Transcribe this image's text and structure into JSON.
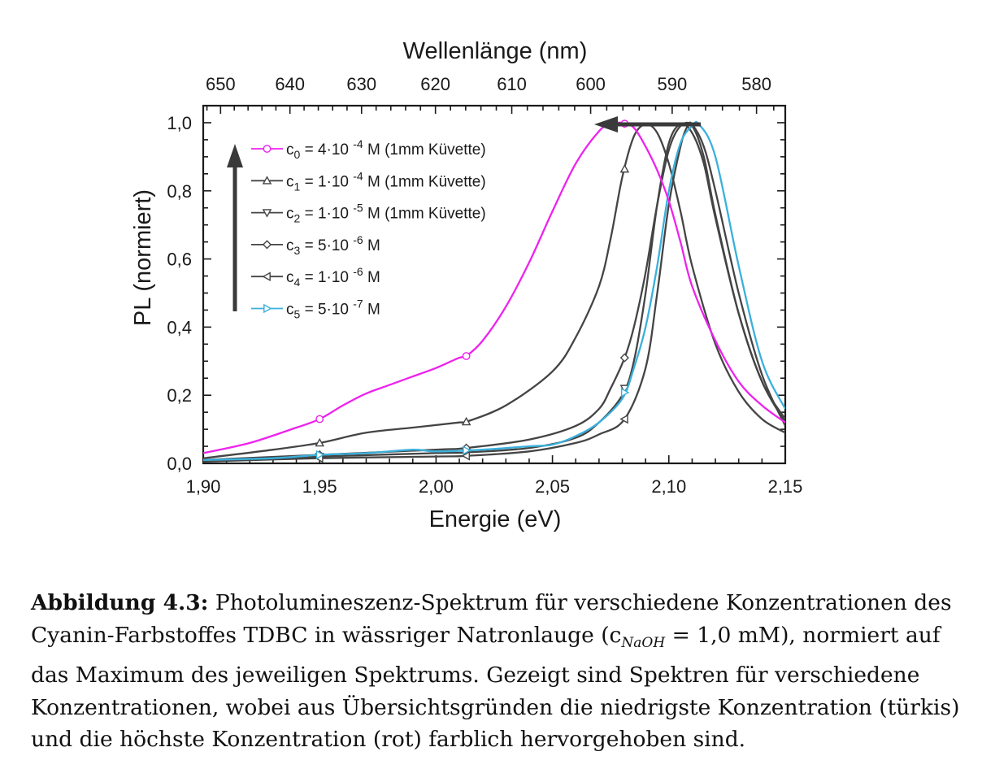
{
  "chart_data": {
    "type": "line",
    "title": "",
    "xlabel": "Energie (eV)",
    "ylabel": "PL (normiert)",
    "top_axis_label": "Wellenlänge (nm)",
    "xlim": [
      1.9,
      2.15
    ],
    "ylim": [
      0.0,
      1.05
    ],
    "xticks": [
      1.9,
      1.95,
      2.0,
      2.05,
      2.1,
      2.15
    ],
    "xtick_labels": [
      "1,90",
      "1,95",
      "2,00",
      "2,05",
      "2,10",
      "2,15"
    ],
    "yticks": [
      0.0,
      0.2,
      0.4,
      0.6,
      0.8,
      1.0
    ],
    "ytick_labels": [
      "0,0",
      "0,2",
      "0,4",
      "0,6",
      "0,8",
      "1,0"
    ],
    "top_ticks_nm": [
      650,
      640,
      630,
      620,
      610,
      600,
      590,
      580
    ],
    "top_tick_labels": [
      "650",
      "640",
      "630",
      "620",
      "610",
      "600",
      "590",
      "580"
    ],
    "grid": false,
    "legend_position": "top-left",
    "arrows": [
      "vertical arrow pointing up (increasing concentration)",
      "horizontal arrow pointing left (red shift)"
    ],
    "series": [
      {
        "legend": [
          "c",
          "0",
          " = 4·10 ",
          "-4",
          " M (1mm Küvette)"
        ],
        "color": "#ee22ee",
        "marker": "circle",
        "marker_x": [
          1.95,
          2.013,
          2.081
        ],
        "x": [
          1.9,
          1.92,
          1.94,
          1.95,
          1.96,
          1.97,
          1.98,
          1.99,
          2.0,
          2.01,
          2.013,
          2.02,
          2.03,
          2.04,
          2.05,
          2.06,
          2.07,
          2.075,
          2.08,
          2.085,
          2.09,
          2.095,
          2.1,
          2.105,
          2.11,
          2.12,
          2.13,
          2.14,
          2.15
        ],
        "y": [
          0.03,
          0.06,
          0.105,
          0.13,
          0.17,
          0.205,
          0.23,
          0.255,
          0.28,
          0.31,
          0.315,
          0.36,
          0.46,
          0.59,
          0.74,
          0.88,
          0.975,
          0.995,
          1.0,
          0.985,
          0.93,
          0.86,
          0.77,
          0.65,
          0.52,
          0.36,
          0.24,
          0.17,
          0.12
        ]
      },
      {
        "legend": [
          "c",
          "1",
          " = 1·10 ",
          "-4",
          " M (1mm Küvette)"
        ],
        "color": "#444444",
        "marker": "triangle-up",
        "marker_x": [
          1.95,
          2.013,
          2.081
        ],
        "x": [
          1.9,
          1.93,
          1.95,
          1.97,
          1.99,
          2.01,
          2.013,
          2.03,
          2.05,
          2.06,
          2.07,
          2.075,
          2.08,
          2.085,
          2.09,
          2.095,
          2.1,
          2.105,
          2.11,
          2.12,
          2.13,
          2.14,
          2.15
        ],
        "y": [
          0.015,
          0.04,
          0.06,
          0.09,
          0.105,
          0.12,
          0.122,
          0.17,
          0.27,
          0.37,
          0.52,
          0.66,
          0.84,
          0.96,
          0.995,
          0.97,
          0.88,
          0.74,
          0.58,
          0.35,
          0.21,
          0.13,
          0.09
        ]
      },
      {
        "legend": [
          "c",
          "2",
          " = 1·10 ",
          "-5",
          " M (1mm Küvette)"
        ],
        "color": "#444444",
        "marker": "triangle-down",
        "marker_x": [
          1.95,
          2.013,
          2.081
        ],
        "x": [
          1.9,
          1.95,
          2.0,
          2.013,
          2.04,
          2.06,
          2.07,
          2.08,
          2.085,
          2.09,
          2.095,
          2.1,
          2.105,
          2.11,
          2.115,
          2.12,
          2.13,
          2.14,
          2.15
        ],
        "y": [
          0.01,
          0.02,
          0.03,
          0.032,
          0.045,
          0.075,
          0.12,
          0.2,
          0.3,
          0.5,
          0.76,
          0.94,
          0.995,
          0.97,
          0.88,
          0.72,
          0.44,
          0.24,
          0.12
        ]
      },
      {
        "legend": [
          "c",
          "3",
          " = 5·10 ",
          "-6",
          " M"
        ],
        "color": "#444444",
        "marker": "diamond",
        "marker_x": [
          1.95,
          2.013,
          2.081
        ],
        "x": [
          1.9,
          1.95,
          2.0,
          2.013,
          2.04,
          2.06,
          2.07,
          2.075,
          2.081,
          2.085,
          2.09,
          2.095,
          2.1,
          2.105,
          2.11,
          2.115,
          2.12,
          2.13,
          2.14,
          2.15
        ],
        "y": [
          0.01,
          0.025,
          0.04,
          0.045,
          0.07,
          0.11,
          0.16,
          0.22,
          0.31,
          0.4,
          0.56,
          0.76,
          0.92,
          0.99,
          0.99,
          0.9,
          0.73,
          0.44,
          0.24,
          0.13
        ]
      },
      {
        "legend": [
          "c",
          "4",
          " = 1·10 ",
          "-6",
          " M"
        ],
        "color": "#444444",
        "marker": "triangle-left",
        "marker_x": [
          1.95,
          2.013,
          2.081
        ],
        "x": [
          1.9,
          1.95,
          2.0,
          2.013,
          2.04,
          2.06,
          2.07,
          2.081,
          2.09,
          2.095,
          2.1,
          2.105,
          2.108,
          2.11,
          2.115,
          2.12,
          2.13,
          2.14,
          2.15
        ],
        "y": [
          0.005,
          0.015,
          0.02,
          0.022,
          0.035,
          0.06,
          0.085,
          0.13,
          0.28,
          0.5,
          0.76,
          0.93,
          0.99,
          0.995,
          0.93,
          0.8,
          0.5,
          0.26,
          0.11
        ]
      },
      {
        "legend": [
          "c",
          "5",
          " = 5·10 ",
          "-7",
          " M"
        ],
        "color": "#3ab0dc",
        "marker": "triangle-right",
        "marker_x": [
          1.95,
          2.013,
          2.081
        ],
        "x": [
          1.9,
          1.93,
          1.95,
          1.97,
          1.99,
          2.0,
          2.02,
          2.04,
          2.05,
          2.06,
          2.07,
          2.08,
          2.085,
          2.09,
          2.095,
          2.1,
          2.105,
          2.11,
          2.113,
          2.12,
          2.13,
          2.14,
          2.15
        ],
        "y": [
          0.01,
          0.015,
          0.025,
          0.03,
          0.04,
          0.035,
          0.04,
          0.05,
          0.055,
          0.08,
          0.12,
          0.19,
          0.28,
          0.4,
          0.58,
          0.8,
          0.94,
          0.99,
          0.995,
          0.9,
          0.58,
          0.3,
          0.16
        ]
      }
    ]
  },
  "caption": {
    "label": "Abbildung 4.3:",
    "part1": " Photolumineszenz-Spektrum für verschiedene Konzentrationen des Cyanin-Farbstoffes TDBC in wässriger Natronlauge (c",
    "subscript": "NaOH",
    "part2": " = 1,0 mM), normiert auf das Maximum des jeweiligen Spektrums. Gezeigt sind Spektren für verschiedene Konzentrationen, wobei aus Übersichtsgründen die niedrigste Konzentration (türkis) und die höchste Konzentration (rot) farblich hervorgehoben sind."
  }
}
